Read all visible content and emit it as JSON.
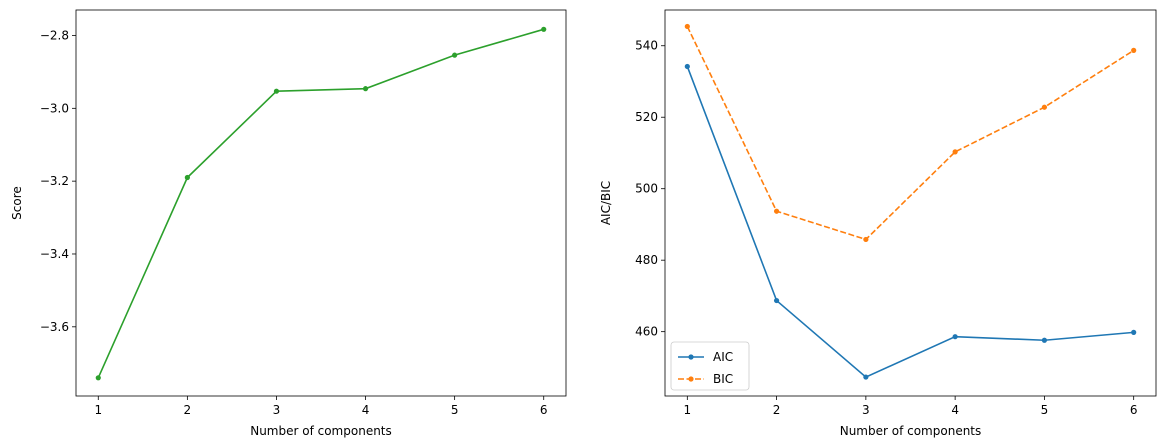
{
  "chart_data": [
    {
      "type": "line",
      "xlabel": "Number of components",
      "ylabel": "Score",
      "x": [
        1,
        2,
        3,
        4,
        5,
        6
      ],
      "xlim": [
        0.75,
        6.25
      ],
      "ylim": [
        -3.79,
        -2.73
      ],
      "xticks": [
        1,
        2,
        3,
        4,
        5,
        6
      ],
      "yticks": [
        -3.6,
        -3.4,
        -3.2,
        -3.0,
        -2.8
      ],
      "ytick_labels": [
        "−3.6",
        "−3.4",
        "−3.2",
        "−3.0",
        "−2.8"
      ],
      "grid": false,
      "series": [
        {
          "values": [
            -3.74,
            -3.19,
            -2.953,
            -2.946,
            -2.854,
            -2.783
          ],
          "color": "#2ca02c",
          "linestyle": "solid",
          "marker": "point"
        }
      ]
    },
    {
      "type": "line",
      "xlabel": "Number of components",
      "ylabel": "AIC/BIC",
      "x": [
        1,
        2,
        3,
        4,
        5,
        6
      ],
      "xlim": [
        0.75,
        6.25
      ],
      "ylim": [
        442,
        550
      ],
      "xticks": [
        1,
        2,
        3,
        4,
        5,
        6
      ],
      "yticks": [
        460,
        480,
        500,
        520,
        540
      ],
      "ytick_labels": [
        "460",
        "480",
        "500",
        "520",
        "540"
      ],
      "grid": false,
      "legend": "lower-left",
      "series": [
        {
          "name": "AIC",
          "values": [
            534.2,
            468.7,
            447.3,
            458.6,
            457.6,
            459.8
          ],
          "color": "#1f77b4",
          "linestyle": "solid",
          "marker": "point"
        },
        {
          "name": "BIC",
          "values": [
            545.4,
            493.7,
            485.8,
            510.3,
            522.8,
            538.7
          ],
          "color": "#ff7f0e",
          "linestyle": "dashed",
          "marker": "point"
        }
      ]
    }
  ]
}
